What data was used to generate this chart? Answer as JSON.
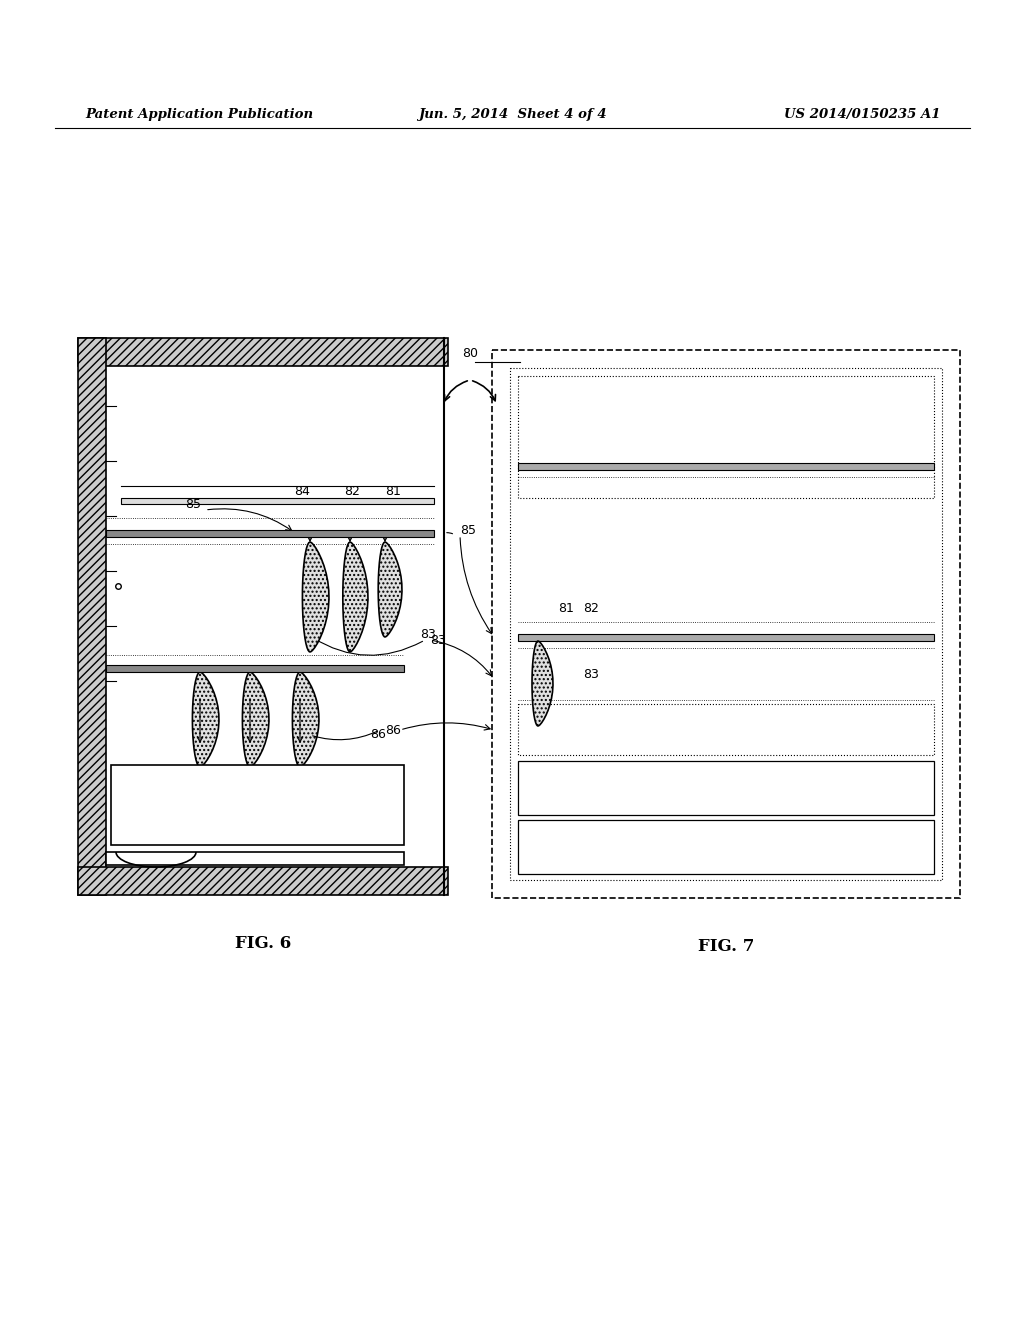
{
  "bg_color": "#ffffff",
  "header_left": "Patent Application Publication",
  "header_mid": "Jun. 5, 2014  Sheet 4 of 4",
  "header_right": "US 2014/0150235 A1",
  "fig6_label": "FIG. 6",
  "fig7_label": "FIG. 7",
  "label_80": "80",
  "label_81a": "81",
  "label_82a": "82",
  "label_83a": "83",
  "label_84": "84",
  "label_85a": "85",
  "label_85b": "85",
  "label_86": "86",
  "label_81b": "81",
  "label_82b": "82",
  "label_83b": "83",
  "line_color": "#000000"
}
